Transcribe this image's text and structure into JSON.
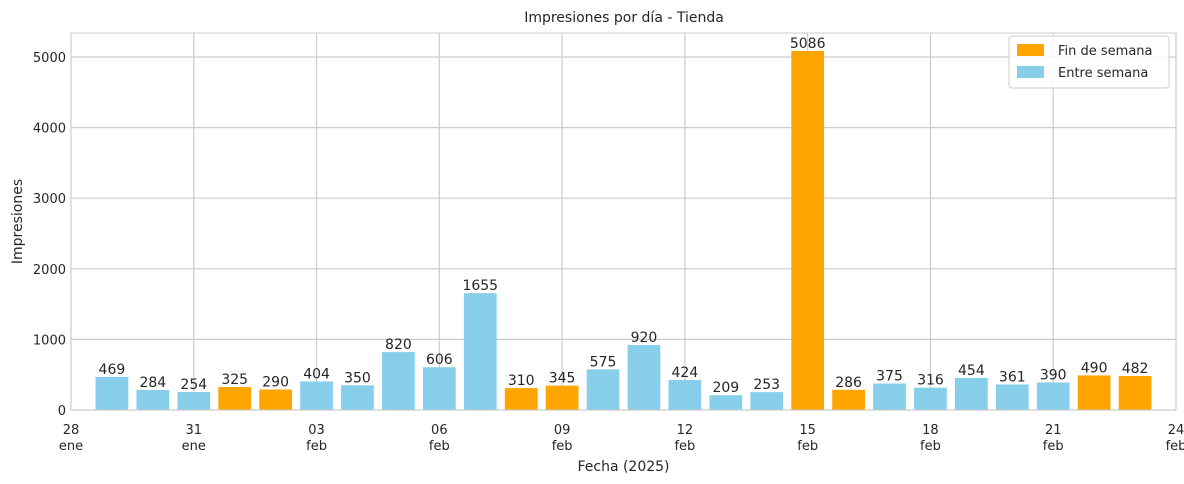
{
  "chart_data": {
    "type": "bar",
    "title": "Impresiones por día - Tienda",
    "xlabel": "Fecha (2025)",
    "ylabel": "Impresiones",
    "ylim": [
      0,
      5340
    ],
    "yticks": [
      0,
      1000,
      2000,
      3000,
      4000,
      5000
    ],
    "xticks": [
      {
        "day": "28",
        "month": "ene",
        "index": -1
      },
      {
        "day": "31",
        "month": "ene",
        "index": 2
      },
      {
        "day": "03",
        "month": "feb",
        "index": 5
      },
      {
        "day": "06",
        "month": "feb",
        "index": 8
      },
      {
        "day": "09",
        "month": "feb",
        "index": 11
      },
      {
        "day": "12",
        "month": "feb",
        "index": 14
      },
      {
        "day": "15",
        "month": "feb",
        "index": 17
      },
      {
        "day": "18",
        "month": "feb",
        "index": 20
      },
      {
        "day": "21",
        "month": "feb",
        "index": 23
      },
      {
        "day": "24",
        "month": "feb",
        "index": 26
      }
    ],
    "x_range_index": [
      -1,
      26
    ],
    "dates": [
      "2025-01-29",
      "2025-01-30",
      "2025-01-31",
      "2025-02-01",
      "2025-02-02",
      "2025-02-03",
      "2025-02-04",
      "2025-02-05",
      "2025-02-06",
      "2025-02-07",
      "2025-02-08",
      "2025-02-09",
      "2025-02-10",
      "2025-02-11",
      "2025-02-12",
      "2025-02-13",
      "2025-02-14",
      "2025-02-15",
      "2025-02-16",
      "2025-02-17",
      "2025-02-18",
      "2025-02-19",
      "2025-02-20",
      "2025-02-21",
      "2025-02-22",
      "2025-02-23"
    ],
    "values": [
      469,
      284,
      254,
      325,
      290,
      404,
      350,
      820,
      606,
      1655,
      310,
      345,
      575,
      920,
      424,
      209,
      253,
      5086,
      286,
      375,
      316,
      454,
      361,
      390,
      490,
      482
    ],
    "weekend": [
      false,
      false,
      false,
      true,
      true,
      false,
      false,
      false,
      false,
      false,
      true,
      true,
      false,
      false,
      false,
      false,
      false,
      true,
      true,
      false,
      false,
      false,
      false,
      false,
      true,
      true
    ],
    "grid": true,
    "legend_position": "top-right",
    "legend": [
      {
        "label": "Fin de semana",
        "color": "#FFA500"
      },
      {
        "label": "Entre semana",
        "color": "#87CEEB"
      }
    ],
    "colors": {
      "weekend": "#FFA500",
      "weekday": "#87CEEB",
      "grid": "#cccccc",
      "axes": "#cccccc",
      "text": "#262626"
    }
  }
}
